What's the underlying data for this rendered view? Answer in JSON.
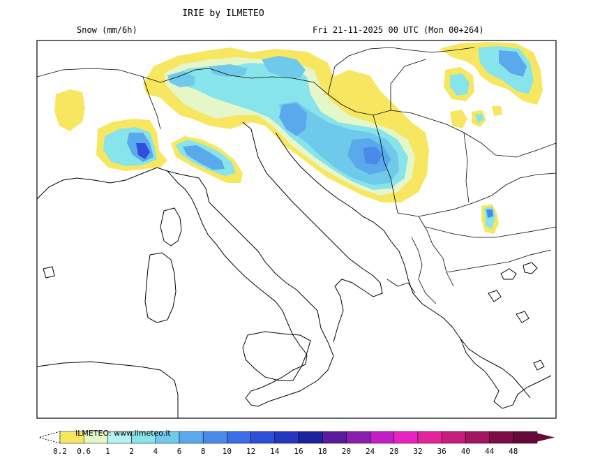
{
  "header": {
    "title": "IRIE by ILMETEO",
    "variable": "Snow (mm/6h)",
    "valid_time": "Fri 21-11-2025 00 UTC (Mon 00+264)"
  },
  "legend": {
    "brand": "ILMETEO: www.ilmeteo.it",
    "ticks": [
      "0.2",
      "0.6",
      "1",
      "2",
      "4",
      "6",
      "8",
      "10",
      "12",
      "14",
      "16",
      "18",
      "20",
      "24",
      "28",
      "32",
      "36",
      "40",
      "44",
      "48"
    ],
    "colors": [
      "#f7e65f",
      "#e5f7c8",
      "#b5f1f1",
      "#86e4ea",
      "#6fc9ea",
      "#5aa9ec",
      "#4a8bea",
      "#3c6ce6",
      "#2e4fd8",
      "#2536c0",
      "#1c23a0",
      "#5a1b9c",
      "#8a1eaf",
      "#c21ec5",
      "#e823c2",
      "#e3259a",
      "#c81c7c",
      "#a3155e",
      "#7e0d47",
      "#640a38"
    ]
  },
  "palette": {
    "yellow": "#f7e65f",
    "pale": "#e5f7c8",
    "cyan1": "#b5f1f1",
    "cyan2": "#86e4ea",
    "blue1": "#6fc9ea",
    "blue2": "#5aa9ec",
    "blue3": "#4a8bea",
    "blue4": "#3c6ce6",
    "blue5": "#2e4fd8"
  }
}
